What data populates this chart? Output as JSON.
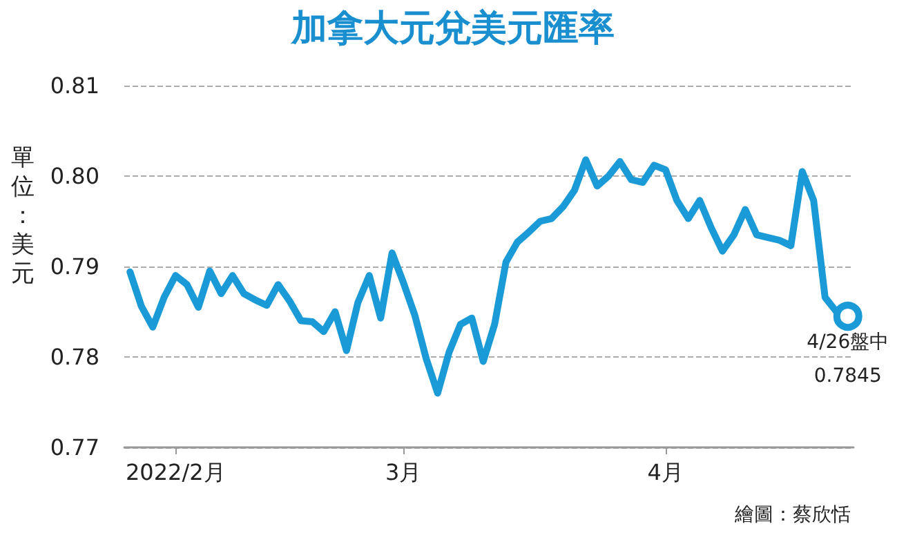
{
  "chart_data": {
    "type": "line",
    "title": "加拿大元兌美元匯率",
    "ylabel": "單位：美元",
    "categories": [
      null,
      null,
      null,
      null,
      "2022/2月",
      null,
      null,
      null,
      null,
      null,
      null,
      null,
      null,
      null,
      null,
      null,
      null,
      null,
      null,
      null,
      null,
      null,
      null,
      null,
      "3月",
      null,
      null,
      null,
      null,
      null,
      null,
      null,
      null,
      null,
      null,
      null,
      null,
      null,
      null,
      null,
      null,
      null,
      null,
      null,
      null,
      null,
      null,
      "4月",
      null,
      null,
      null,
      null,
      null,
      null,
      null,
      null,
      null,
      null,
      null,
      null,
      null,
      null,
      null,
      null
    ],
    "series": [
      {
        "color": "#1a9ad6",
        "values": [
          0.7894,
          0.7856,
          0.7833,
          0.7866,
          0.789,
          0.788,
          0.7855,
          0.7895,
          0.787,
          0.789,
          0.787,
          0.7863,
          0.7857,
          0.788,
          0.7862,
          0.784,
          0.7839,
          0.7828,
          0.785,
          0.7807,
          0.786,
          0.789,
          0.7843,
          0.7915,
          0.7882,
          0.7846,
          0.7798,
          0.776,
          0.7805,
          0.7836,
          0.7843,
          0.7795,
          0.7836,
          0.7905,
          0.7927,
          0.7938,
          0.795,
          0.7953,
          0.7966,
          0.7984,
          0.8018,
          0.7989,
          0.8,
          0.8016,
          0.7996,
          0.7993,
          0.8012,
          0.8007,
          0.7973,
          0.7953,
          0.7973,
          0.7943,
          0.7917,
          0.7935,
          0.7963,
          0.7935,
          0.7932,
          0.7929,
          0.7923,
          0.8005,
          0.7973,
          0.7866,
          0.785,
          0.7845
        ],
        "value_labels": [
          null,
          null,
          null,
          null,
          null,
          null,
          null,
          null,
          null,
          null,
          null,
          null,
          null,
          null,
          null,
          null,
          null,
          null,
          null,
          null,
          null,
          null,
          null,
          null,
          null,
          null,
          null,
          null,
          null,
          null,
          null,
          null,
          null,
          null,
          null,
          null,
          null,
          null,
          null,
          null,
          null,
          null,
          null,
          null,
          null,
          null,
          null,
          null,
          null,
          null,
          null,
          null,
          null,
          null,
          null,
          null,
          null,
          null,
          null,
          null,
          null,
          null,
          null,
          "0.7845"
        ]
      }
    ],
    "ylim": [
      0.77,
      0.81
    ],
    "yticks": [
      0.77,
      0.78,
      0.79,
      {
        "value": 0.8,
        "label": "0.80"
      },
      0.81
    ],
    "grid": "y",
    "annotations": [
      "4/26盤中",
      "繪圖：蔡欣恬"
    ]
  }
}
